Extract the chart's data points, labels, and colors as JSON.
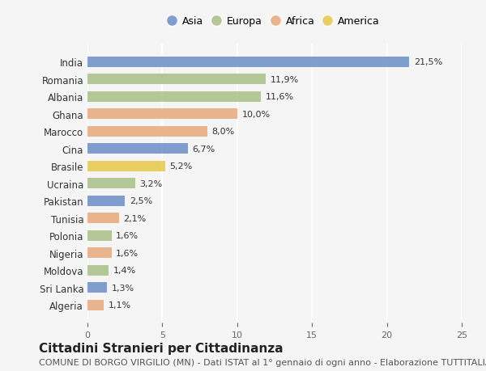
{
  "countries": [
    "India",
    "Romania",
    "Albania",
    "Ghana",
    "Marocco",
    "Cina",
    "Brasile",
    "Ucraina",
    "Pakistan",
    "Tunisia",
    "Polonia",
    "Nigeria",
    "Moldova",
    "Sri Lanka",
    "Algeria"
  ],
  "values": [
    21.5,
    11.9,
    11.6,
    10.0,
    8.0,
    6.7,
    5.2,
    3.2,
    2.5,
    2.1,
    1.6,
    1.6,
    1.4,
    1.3,
    1.1
  ],
  "labels": [
    "21,5%",
    "11,9%",
    "11,6%",
    "10,0%",
    "8,0%",
    "6,7%",
    "5,2%",
    "3,2%",
    "2,5%",
    "2,1%",
    "1,6%",
    "1,6%",
    "1,4%",
    "1,3%",
    "1,1%"
  ],
  "continents": [
    "Asia",
    "Europa",
    "Europa",
    "Africa",
    "Africa",
    "Asia",
    "America",
    "Europa",
    "Asia",
    "Africa",
    "Europa",
    "Africa",
    "Europa",
    "Asia",
    "Africa"
  ],
  "continent_colors": {
    "Asia": "#6a8fc8",
    "Europa": "#a8bf87",
    "Africa": "#e8a87c",
    "America": "#e8c84a"
  },
  "legend_order": [
    "Asia",
    "Europa",
    "Africa",
    "America"
  ],
  "xlim": [
    0,
    25
  ],
  "xticks": [
    0,
    5,
    10,
    15,
    20,
    25
  ],
  "title": "Cittadini Stranieri per Cittadinanza",
  "subtitle": "COMUNE DI BORGO VIRGILIO (MN) - Dati ISTAT al 1° gennaio di ogni anno - Elaborazione TUTTITALIA.IT",
  "background_color": "#f5f5f5",
  "bar_height": 0.6,
  "title_fontsize": 11,
  "subtitle_fontsize": 8
}
